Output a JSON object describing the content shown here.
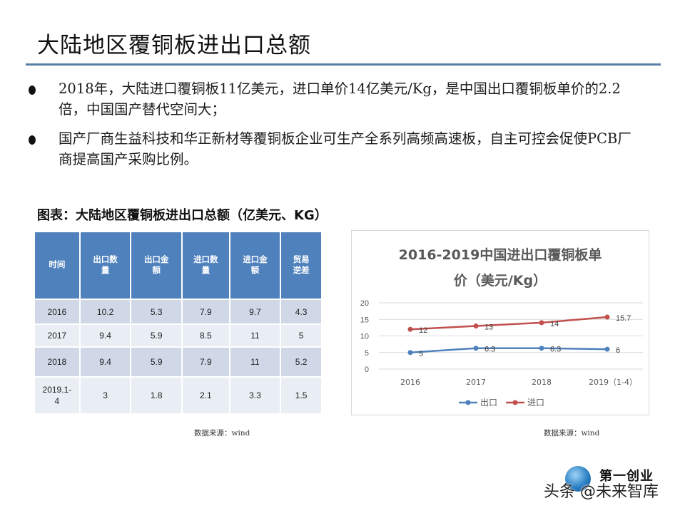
{
  "slide": {
    "title": "大陆地区覆铜板进出口总额",
    "accent_color": "#5a7fa6"
  },
  "bullets": [
    {
      "text": "2018年，大陆进口覆铜板11亿美元，进口单价14亿美元/Kg，是中国出口覆铜板单价的2.2倍，中国国产替代空间大；"
    },
    {
      "text": "国产厂商生益科技和华正新材等覆铜板企业可生产全系列高频高速板，自主可控会促使PCB厂商提高国产采购比例。"
    }
  ],
  "table": {
    "caption": "图表：大陆地区覆铜板进出口总额（亿美元、KG）",
    "header_color": "#4f81bd",
    "columns": [
      "时间",
      "出口数量",
      "出口金额",
      "进口数量",
      "进口金额",
      "贸易逆差"
    ],
    "column_lines": [
      [
        "时间"
      ],
      [
        "出口数",
        "量"
      ],
      [
        "出口金",
        "额"
      ],
      [
        "进口数",
        "量"
      ],
      [
        "进口金",
        "额"
      ],
      [
        "贸易",
        "逆差"
      ]
    ],
    "rows": [
      [
        "2016",
        "10.2",
        "5.3",
        "7.9",
        "9.7",
        "4.3"
      ],
      [
        "2017",
        "9.4",
        "5.9",
        "8.5",
        "11",
        "5"
      ],
      [
        "2018",
        "9.4",
        "5.9",
        "7.9",
        "11",
        "5.2"
      ],
      [
        "2019.1-4",
        "3",
        "1.8",
        "2.1",
        "3.3",
        "1.5"
      ]
    ],
    "source": "数据来源：wind"
  },
  "chart": {
    "source": "数据来源：wind"
  },
  "chart_data": {
    "type": "line",
    "title": "2016-2019中国进出口覆铜板单价（美元/Kg）",
    "title_lines": [
      "2016-2019中国进出口覆铜板单",
      "价（美元/Kg）"
    ],
    "categories": [
      "2016",
      "2017",
      "2018",
      "2019（1-4）"
    ],
    "series": [
      {
        "name": "出口",
        "color": "#4f81bd",
        "values": [
          5,
          6.3,
          6.3,
          6
        ],
        "labels": [
          "5",
          "6.3",
          "6.3",
          "6"
        ]
      },
      {
        "name": "进口",
        "color": "#c0504d",
        "values": [
          12,
          13,
          14,
          15.7
        ],
        "labels": [
          "12",
          "13",
          "14",
          "15.7"
        ]
      }
    ],
    "xlabel": "",
    "ylabel": "",
    "ylim": [
      0,
      20
    ],
    "yticks": [
      "0",
      "5",
      "10",
      "15",
      "20"
    ],
    "grid": true,
    "legend_position": "bottom"
  },
  "watermark": {
    "brand": "第一创业",
    "text": "头条 @未来智库"
  }
}
